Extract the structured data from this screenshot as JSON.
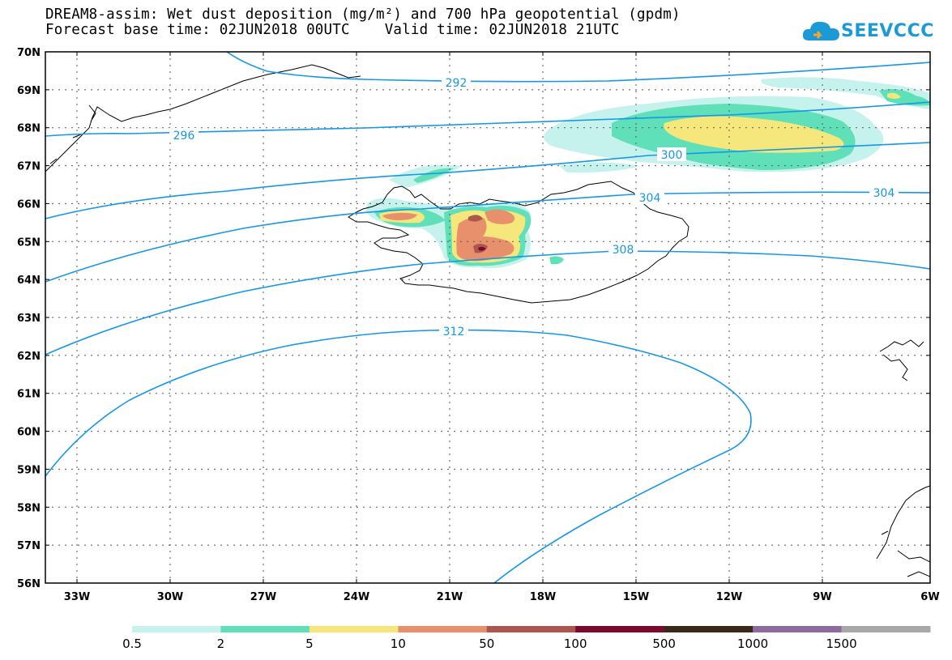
{
  "title_line1": "DREAM8-assim: Wet dust deposition (mg/m²) and 700 hPa geopotential (gpdm)",
  "title_line2": "Forecast base time: 02JUN2018 00UTC    Valid time: 02JUN2018 21UTC",
  "logo_text": "SEEVCCC",
  "lat_labels": [
    "70N",
    "69N",
    "68N",
    "67N",
    "66N",
    "65N",
    "64N",
    "63N",
    "62N",
    "61N",
    "60N",
    "59N",
    "58N",
    "57N",
    "56N"
  ],
  "lon_labels": [
    "33W",
    "30W",
    "27W",
    "24W",
    "21W",
    "18W",
    "15W",
    "12W",
    "9W",
    "6W"
  ],
  "contour_labels": [
    "292",
    "296",
    "300",
    "304",
    "304",
    "308",
    "312"
  ],
  "legend": {
    "colors": [
      "#c5f2ec",
      "#5fe0b8",
      "#f5e77b",
      "#e8906c",
      "#ac564e",
      "#7d0a2c",
      "#3a2818",
      "#8e6a9e",
      "#a8a8a8"
    ],
    "labels": [
      "0.5",
      "2",
      "5",
      "10",
      "50",
      "100",
      "500",
      "1000",
      "1500"
    ]
  },
  "colors": {
    "contour": "#1597e8",
    "coast": "#000000"
  }
}
